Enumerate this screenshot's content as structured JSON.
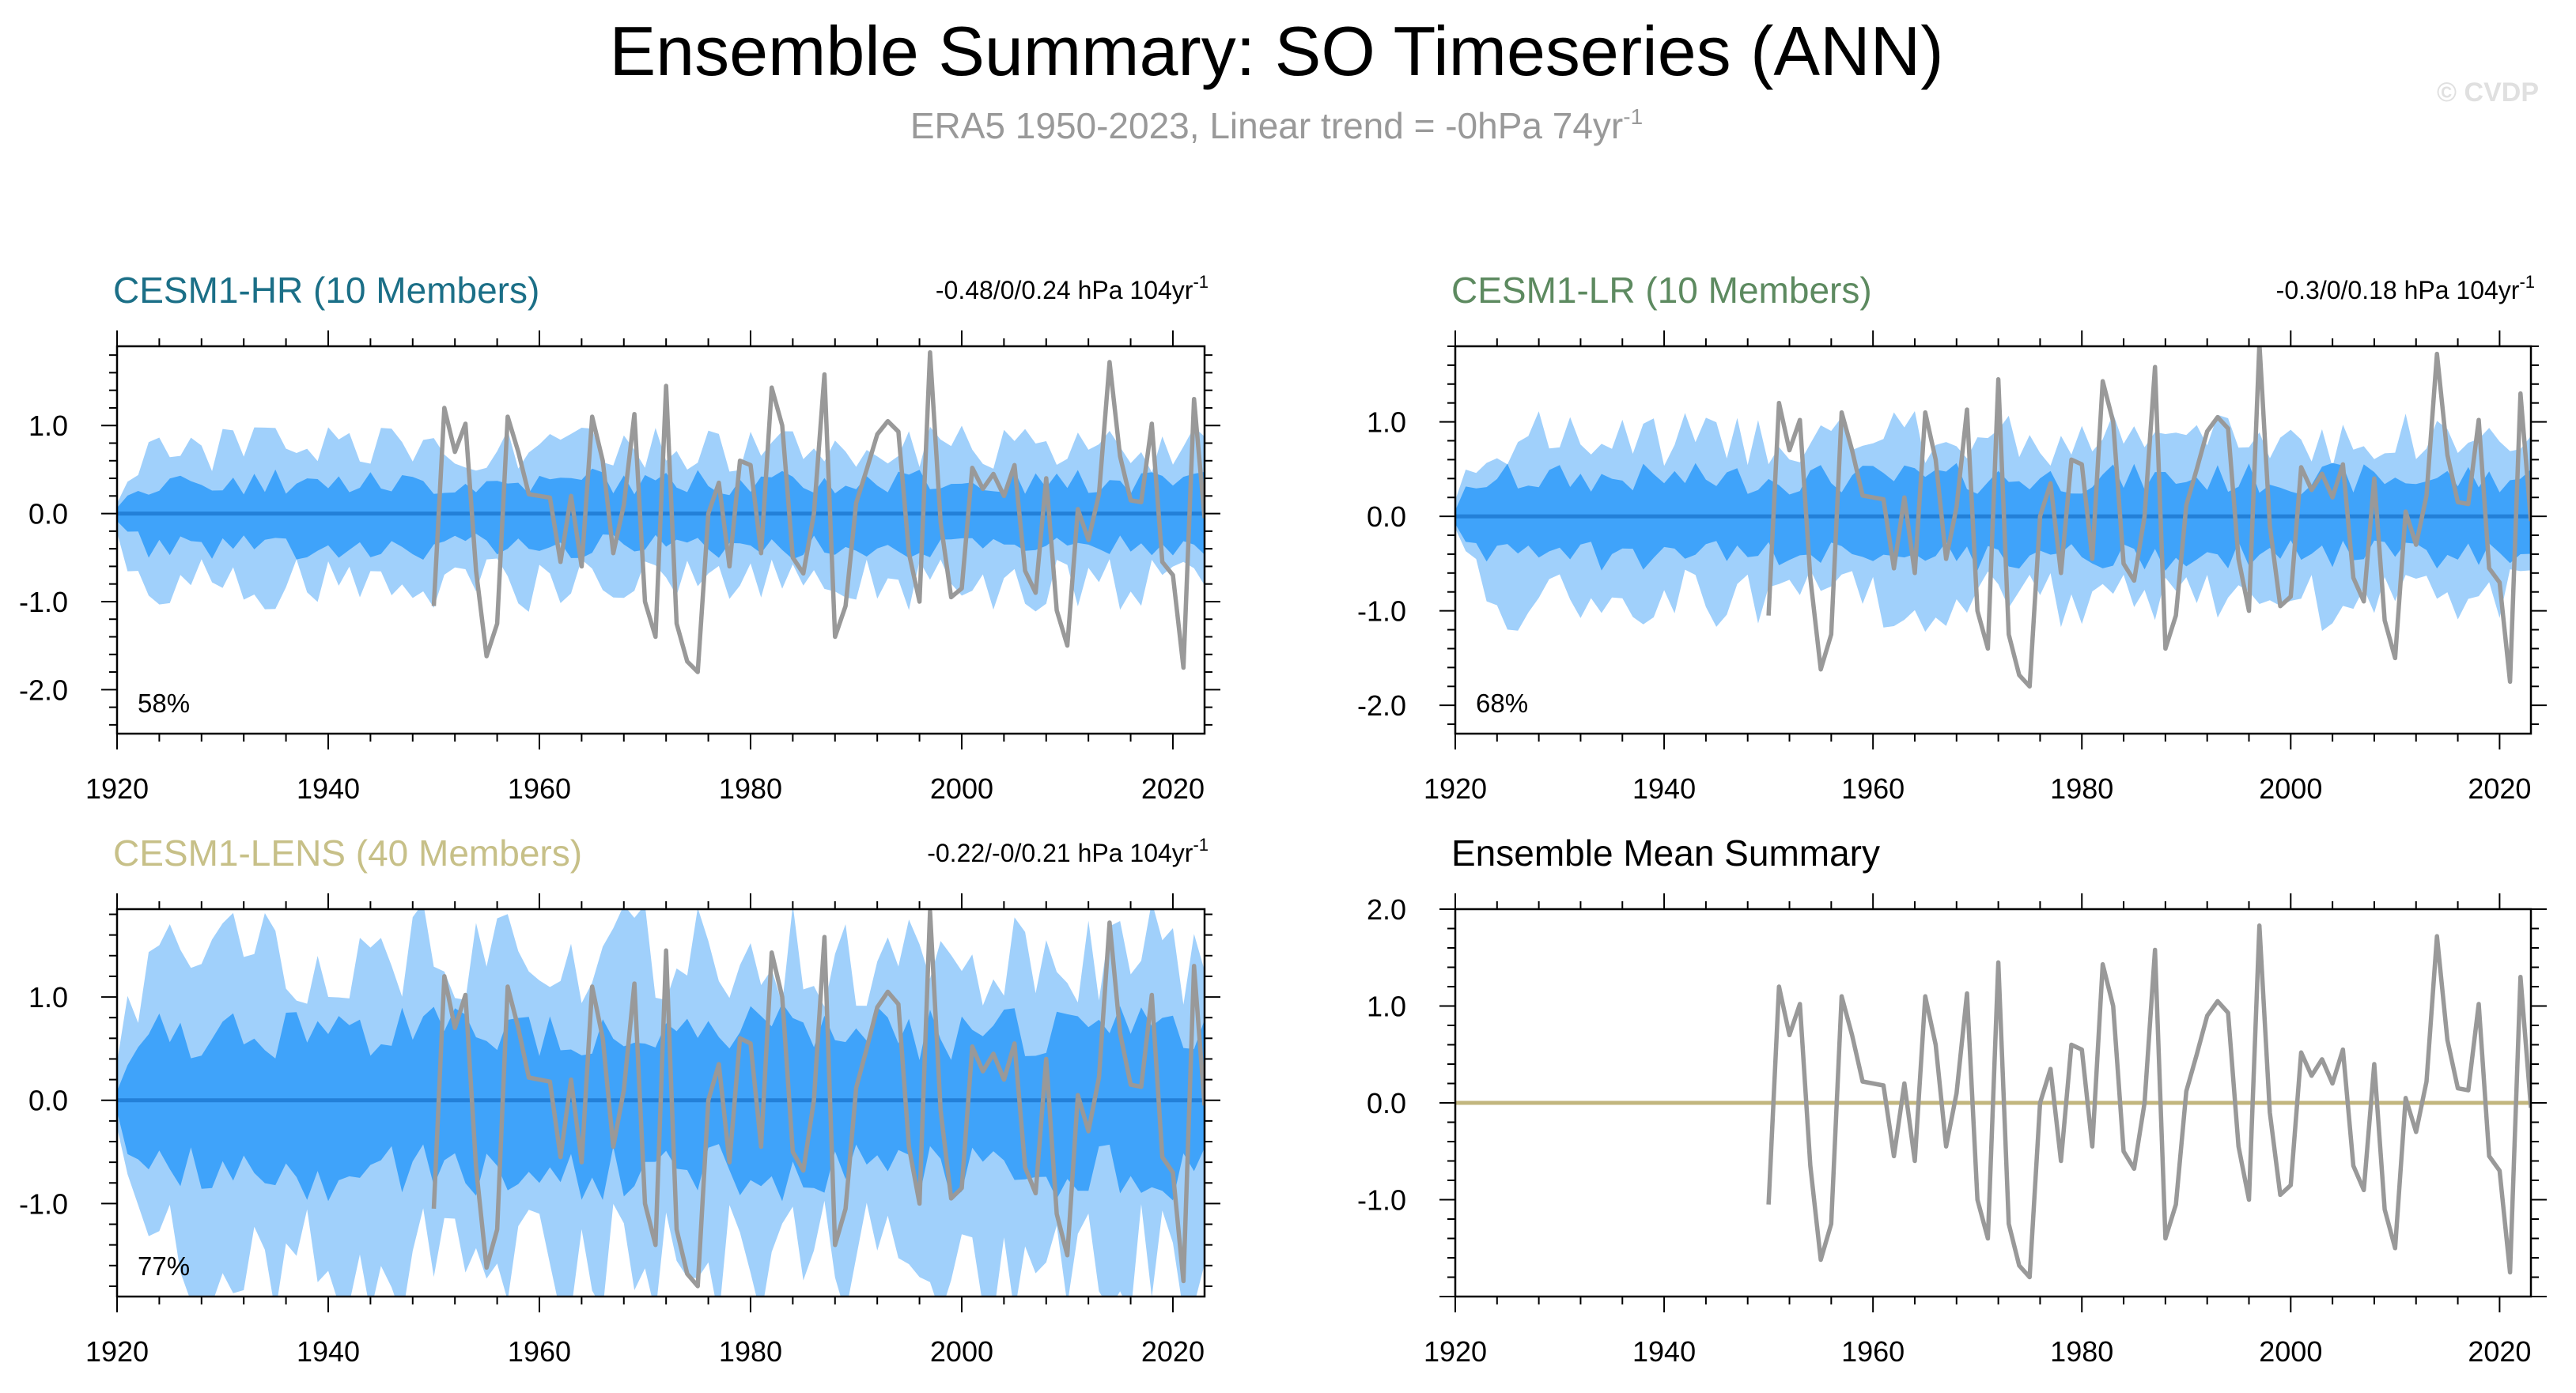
{
  "title": "Ensemble Summary: SO Timeseries (ANN)",
  "subtitle": "ERA5 1950-2023, Linear trend = -0hPa 74yr",
  "subtitle_sup": "-1",
  "watermark": "© CVDP",
  "colors": {
    "outer_band": "#a0d0fb",
    "inner_band": "#3fa3fa",
    "ens_mean_line": "#2380d8",
    "obs_line": "#999999",
    "hr_title": "#1b6f87",
    "lr_title": "#5d8a60",
    "lens_title": "#c7c088",
    "summary_title": "#000000",
    "summary_mean": "#c2b67e"
  },
  "obs_ERA5": {
    "x": [
      1950,
      1951,
      1952,
      1953,
      1954,
      1955,
      1956,
      1957,
      1958,
      1959,
      1960,
      1961,
      1962,
      1963,
      1964,
      1965,
      1966,
      1967,
      1968,
      1969,
      1970,
      1971,
      1972,
      1973,
      1974,
      1975,
      1976,
      1977,
      1978,
      1979,
      1980,
      1981,
      1982,
      1983,
      1984,
      1985,
      1986,
      1987,
      1988,
      1989,
      1990,
      1991,
      1992,
      1993,
      1994,
      1995,
      1996,
      1997,
      1998,
      1999,
      2000,
      2001,
      2002,
      2003,
      2004,
      2005,
      2006,
      2007,
      2008,
      2009,
      2010,
      2011,
      2012,
      2013,
      2014,
      2015,
      2016,
      2017,
      2018,
      2019,
      2020,
      2021,
      2022,
      2023
    ],
    "y": [
      -1.05,
      1.2,
      0.7,
      1.02,
      -0.65,
      -1.62,
      -1.25,
      1.1,
      0.7,
      0.22,
      0.2,
      0.18,
      -0.55,
      0.2,
      -0.6,
      1.1,
      0.6,
      -0.45,
      0.1,
      1.13,
      -1.0,
      -1.4,
      1.45,
      -1.25,
      -1.68,
      -1.8,
      0.0,
      0.35,
      -0.6,
      0.6,
      0.55,
      -0.45,
      1.43,
      1.0,
      -0.5,
      -0.68,
      0.0,
      1.58,
      -1.4,
      -1.05,
      0.12,
      0.5,
      0.9,
      1.05,
      0.93,
      -0.45,
      -1.0,
      1.83,
      -0.1,
      -0.95,
      -0.85,
      0.52,
      0.28,
      0.45,
      0.2,
      0.55,
      -0.65,
      -0.9,
      0.4,
      -1.1,
      -1.5,
      0.05,
      -0.3,
      0.22,
      1.72,
      0.65,
      0.15,
      0.13,
      1.02,
      -0.55,
      -0.7,
      -1.75,
      1.3,
      -0.05
    ]
  },
  "panels": [
    {
      "id": "hr",
      "title": "CESM1-HR (10 Members)",
      "trend": "-0.48/0/0.24 hPa 104yr",
      "trend_sup": "-1",
      "pct": "58%",
      "xmin": 1920,
      "xmax": 2023,
      "ymin": -2.5,
      "ymax": 1.9,
      "xticks": [
        "1920",
        "1940",
        "1960",
        "1980",
        "2000",
        "2020"
      ],
      "yticks": [
        "1.0",
        "0.0",
        "-1.0",
        "-2.0"
      ],
      "ytick_values": [
        1.0,
        0.0,
        -1.0,
        -2.0
      ],
      "xtick_values": [
        1920,
        1940,
        1960,
        1980,
        2000,
        2020
      ],
      "band_outer_amp": 0.72,
      "band_inner_amp": 0.38,
      "band_seed": 3,
      "ens_mean": 0.0,
      "shows_obs": true
    },
    {
      "id": "lr",
      "title": "CESM1-LR (10 Members)",
      "trend": "-0.3/0/0.18 hPa 104yr",
      "trend_sup": "-1",
      "pct": "68%",
      "xmin": 1920,
      "xmax": 2023,
      "ymin": -2.3,
      "ymax": 1.8,
      "xticks": [
        "1920",
        "1940",
        "1960",
        "1980",
        "2000",
        "2020"
      ],
      "yticks": [
        "1.0",
        "0.0",
        "-1.0",
        "-2.0"
      ],
      "ytick_values": [
        1.0,
        0.0,
        -1.0,
        -2.0
      ],
      "xtick_values": [
        1920,
        1940,
        1960,
        1980,
        2000,
        2020
      ],
      "band_outer_amp": 0.8,
      "band_inner_amp": 0.42,
      "band_seed": 7,
      "ens_mean": 0.0,
      "shows_obs": true
    },
    {
      "id": "lens",
      "title": "CESM1-LENS (40 Members)",
      "trend": "-0.22/-0/0.21 hPa 104yr",
      "trend_sup": "-1",
      "pct": "77%",
      "xmin": 1920,
      "xmax": 2023,
      "ymin": -1.9,
      "ymax": 1.85,
      "xticks": [
        "1920",
        "1940",
        "1960",
        "1980",
        "2000",
        "2020"
      ],
      "yticks": [
        "1.0",
        "0.0",
        "-1.0"
      ],
      "ytick_values": [
        1.0,
        0.0,
        -1.0
      ],
      "xtick_values": [
        1920,
        1940,
        1960,
        1980,
        2000,
        2020
      ],
      "band_outer_amp": 1.38,
      "band_inner_amp": 0.7,
      "band_seed": 11,
      "ens_mean": 0.0,
      "shows_obs": true
    },
    {
      "id": "summary",
      "title": "Ensemble Mean Summary",
      "trend": "",
      "trend_sup": "",
      "pct": "",
      "xmin": 1920,
      "xmax": 2023,
      "ymin": -2.0,
      "ymax": 2.0,
      "xticks": [
        "1920",
        "1940",
        "1960",
        "1980",
        "2000",
        "2020"
      ],
      "yticks": [
        "2.0",
        "1.0",
        "0.0",
        "-1.0"
      ],
      "ytick_values": [
        2.0,
        1.0,
        0.0,
        -1.0
      ],
      "xtick_values": [
        1920,
        1940,
        1960,
        1980,
        2000,
        2020
      ],
      "ens_mean": 0.0,
      "shows_obs": true,
      "summary": true
    }
  ],
  "chart_data": [
    {
      "type": "area",
      "title": "CESM1-HR (10 Members)",
      "annotation": "-0.48/0/0.24 hPa 104yr-1",
      "percent_label": "58%",
      "xlim": [
        1920,
        2023
      ],
      "ylim": [
        -2.5,
        1.9
      ],
      "series": [
        {
          "name": "ensemble mean",
          "value": 0.0
        },
        {
          "name": "ERA5",
          "ref": "obs_ERA5"
        }
      ]
    },
    {
      "type": "area",
      "title": "CESM1-LR (10 Members)",
      "annotation": "-0.3/0/0.18 hPa 104yr-1",
      "percent_label": "68%",
      "xlim": [
        1920,
        2023
      ],
      "ylim": [
        -2.3,
        1.8
      ],
      "series": [
        {
          "name": "ensemble mean",
          "value": 0.0
        },
        {
          "name": "ERA5",
          "ref": "obs_ERA5"
        }
      ]
    },
    {
      "type": "area",
      "title": "CESM1-LENS (40 Members)",
      "annotation": "-0.22/-0/0.21 hPa 104yr-1",
      "percent_label": "77%",
      "xlim": [
        1920,
        2023
      ],
      "ylim": [
        -1.9,
        1.85
      ],
      "series": [
        {
          "name": "ensemble mean",
          "value": 0.0
        },
        {
          "name": "ERA5",
          "ref": "obs_ERA5"
        }
      ]
    },
    {
      "type": "line",
      "title": "Ensemble Mean Summary",
      "xlim": [
        1920,
        2023
      ],
      "ylim": [
        -2.0,
        2.0
      ],
      "series": [
        {
          "name": "ensemble mean",
          "value": 0.0
        },
        {
          "name": "ERA5",
          "ref": "obs_ERA5"
        }
      ]
    }
  ]
}
